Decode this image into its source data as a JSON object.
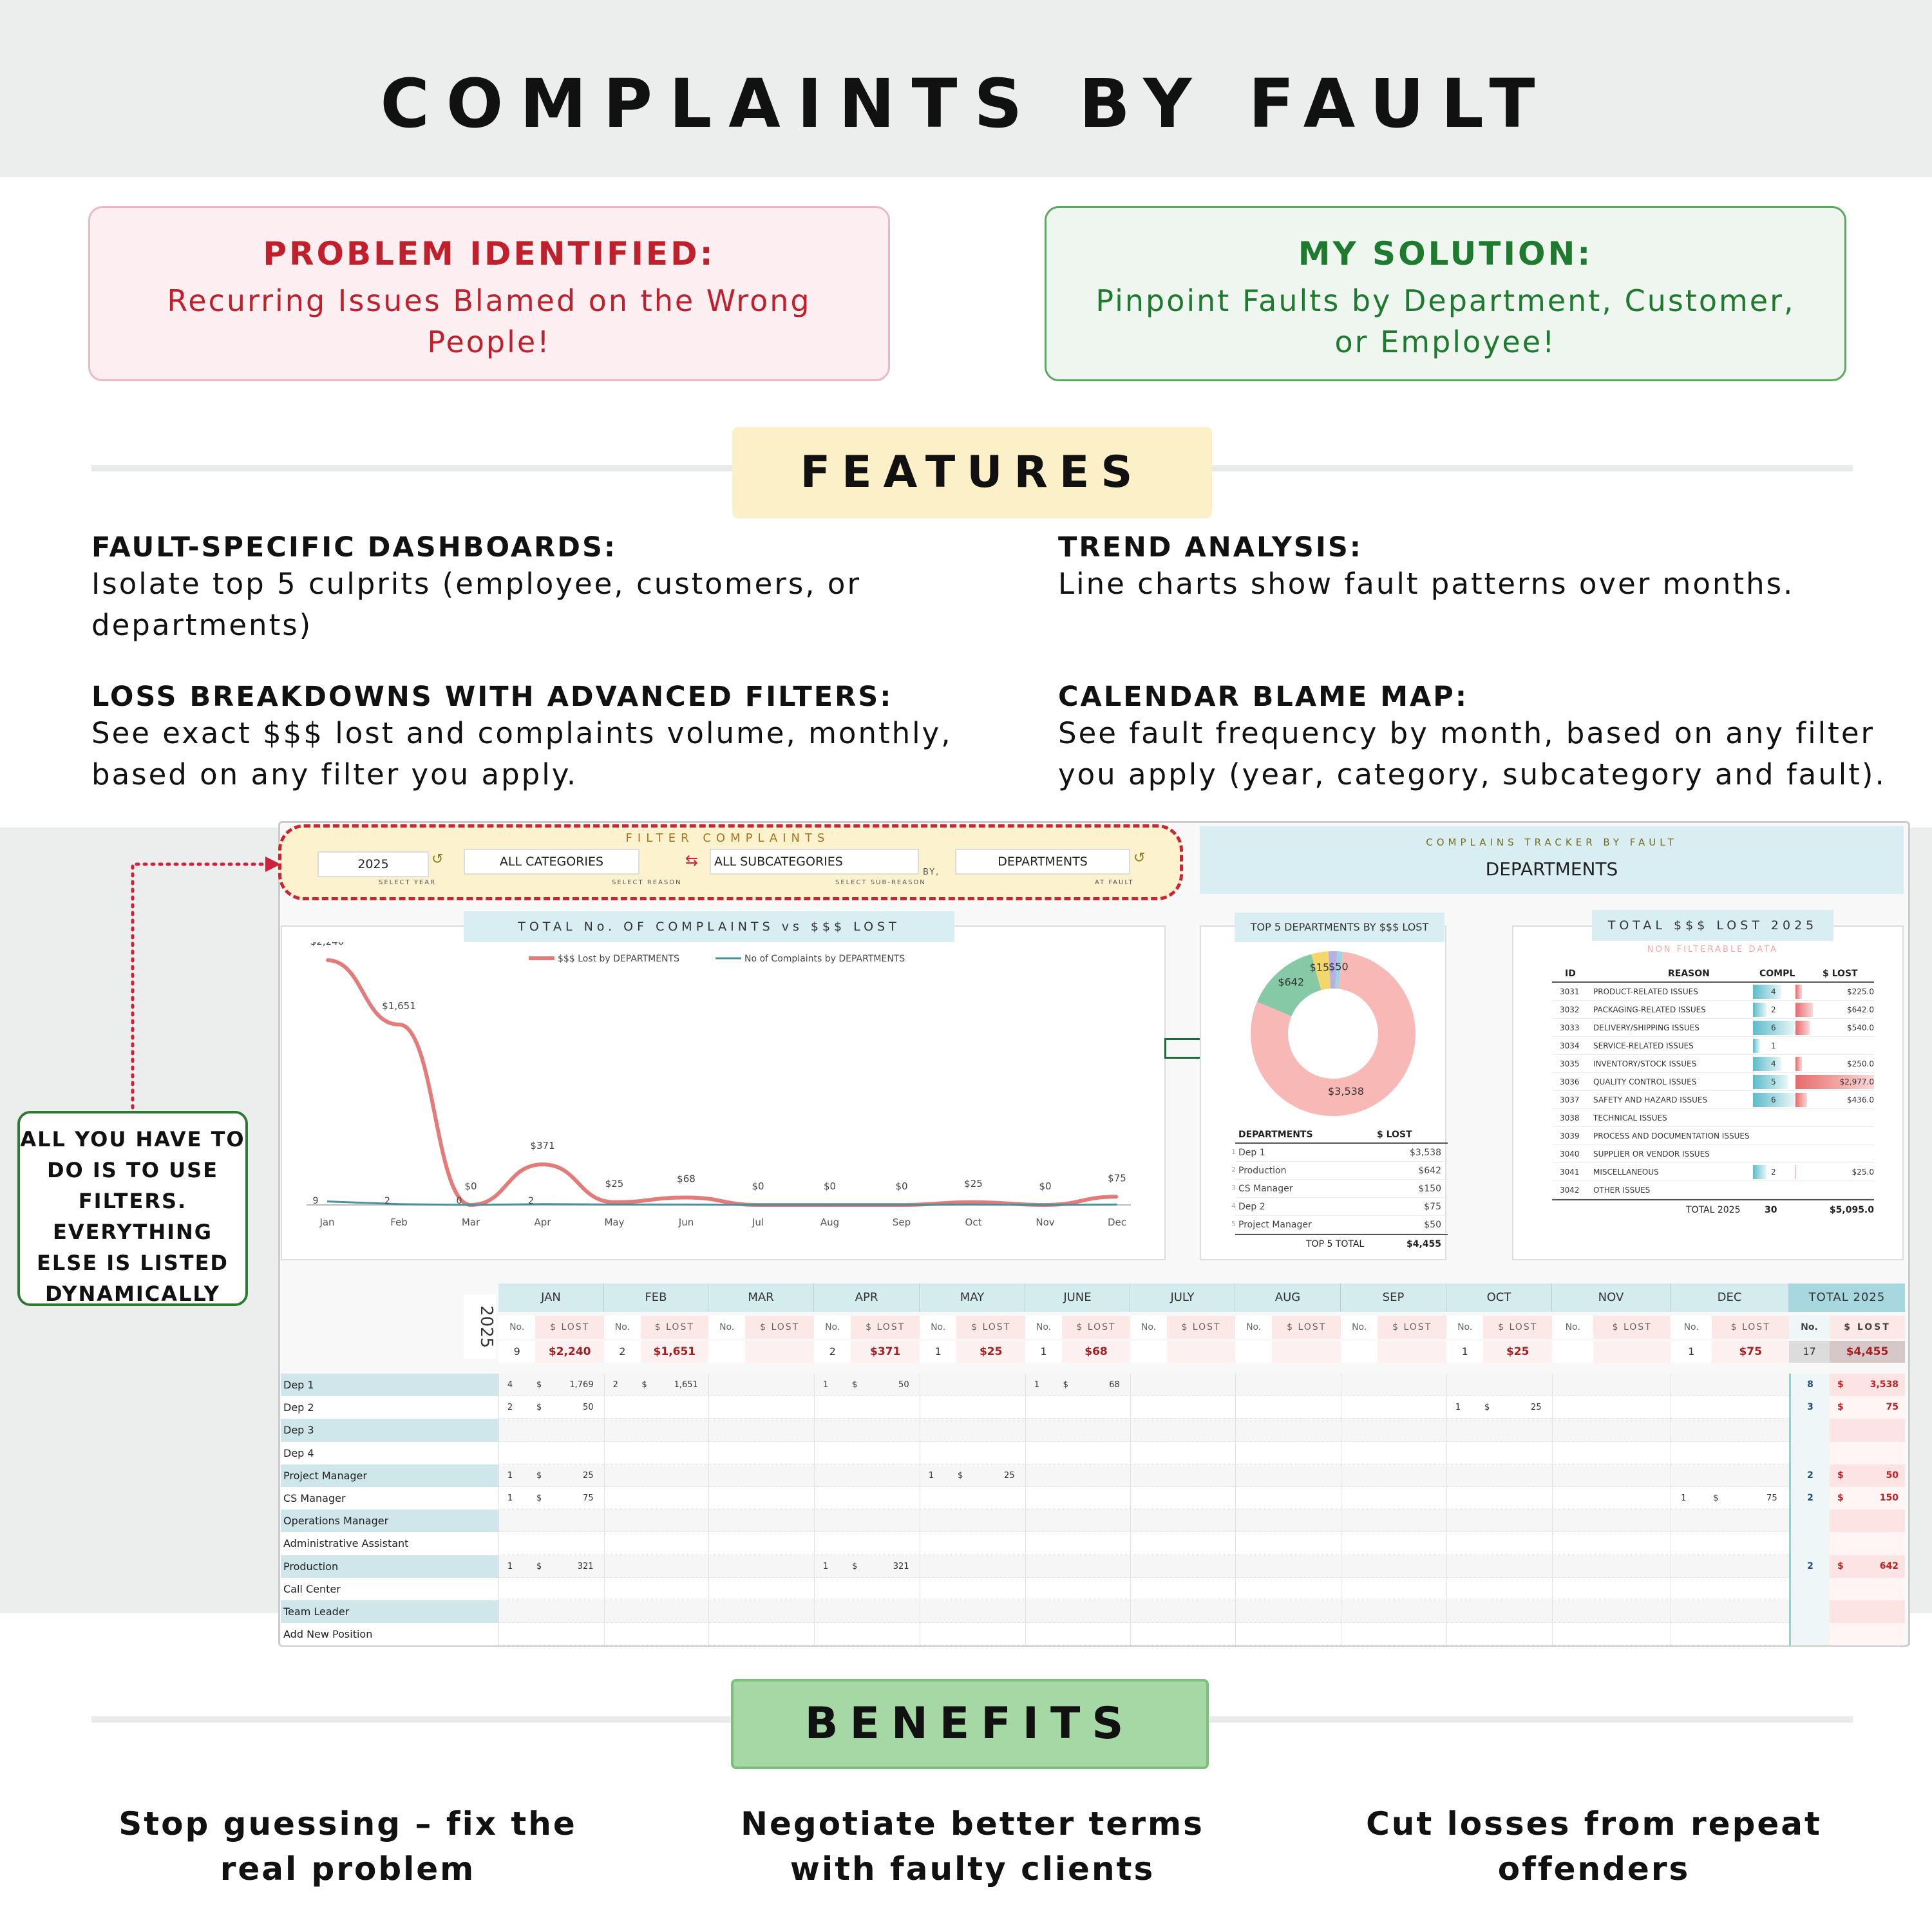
{
  "title": "COMPLAINTS BY FAULT",
  "problem": {
    "heading": "PROBLEM IDENTIFIED:",
    "text": "Recurring Issues Blamed on the Wrong People!",
    "bg": "#fdeef1",
    "border": "#e9b9c4",
    "color": "#c0202b"
  },
  "solution": {
    "heading": "MY SOLUTION:",
    "text": "Pinpoint Faults by Department, Customer, or Employee!",
    "bg": "#eef6ef",
    "border": "#5aa860",
    "color": "#1e7a2e"
  },
  "features": {
    "banner": "FEATURES",
    "items": [
      {
        "heading": "FAULT-SPECIFIC DASHBOARDS:",
        "text": "Isolate top 5 culprits (employee, customers, or departments)"
      },
      {
        "heading": "TREND ANALYSIS:",
        "text": "Line charts show fault patterns over months."
      },
      {
        "heading": "LOSS BREAKDOWNS WITH ADVANCED FILTERS:",
        "text": "See exact $$$ lost and complaints volume, monthly, based on any filter you apply."
      },
      {
        "heading": "CALENDAR BLAME MAP:",
        "text": "See fault frequency by month, based on any filter you apply (year, category, subcategory and fault)."
      }
    ]
  },
  "callout": "ALL YOU HAVE TO DO IS TO USE FILTERS. EVERYTHING ELSE IS LISTED DYNAMICALLY",
  "filters": {
    "title": "FILTER COMPLAINTS",
    "year": "2025",
    "year_sub": "SELECT YEAR",
    "category": "ALL CATEGORIES",
    "category_sub": "SELECT REASON",
    "subcategory": "ALL SUBCATEGORIES",
    "subcategory_sub": "SELECT SUB-REASON",
    "by": "BY,",
    "fault": "DEPARTMENTS",
    "fault_sub": "AT FAULT"
  },
  "tracker": {
    "title": "COMPLAINS TRACKER BY FAULT",
    "value": "DEPARTMENTS"
  },
  "line_title": "TOTAL No. OF COMPLAINTS vs $$$ LOST",
  "chart_data": [
    {
      "type": "line",
      "title": "TOTAL No. OF COMPLAINTS vs $$$ LOST",
      "categories": [
        "Jan",
        "Feb",
        "Mar",
        "Apr",
        "May",
        "Jun",
        "Jul",
        "Aug",
        "Sep",
        "Oct",
        "Nov",
        "Dec"
      ],
      "series": [
        {
          "name": "$$$ Lost by DEPARTMENTS",
          "values": [
            2240,
            1651,
            0,
            371,
            25,
            68,
            0,
            0,
            0,
            25,
            0,
            75
          ],
          "labels": [
            "$2,240",
            "$1,651",
            "$0",
            "$371",
            "$25",
            "$68",
            "$0",
            "$0",
            "$0",
            "$25",
            "$0",
            "$75"
          ],
          "color": "#e47b7b"
        },
        {
          "name": "No of Complaints by DEPARTMENTS",
          "values": [
            9,
            2,
            0,
            2,
            1,
            1,
            0,
            0,
            0,
            1,
            0,
            1
          ],
          "labels": [
            "9",
            "2",
            "0",
            "2",
            "",
            "",
            "",
            "",
            "",
            "",
            "",
            ""
          ],
          "color": "#4a8f9b"
        }
      ]
    },
    {
      "type": "pie",
      "title": "TOP 5 DEPARTMENTS BY $$$ LOST",
      "categories": [
        "Dep 1",
        "Production",
        "CS Manager",
        "Dep 2",
        "Project Manager"
      ],
      "values": [
        3538,
        642,
        150,
        75,
        50
      ],
      "labels": [
        "$3,538",
        "$642",
        "$150",
        "",
        "$50"
      ],
      "colors": [
        "#f8b8b6",
        "#86c9a6",
        "#f4d76a",
        "#b6b0e3",
        "#9fd4e0"
      ]
    }
  ],
  "top5": {
    "title": "TOP 5 DEPARTMENTS BY $$$ LOST",
    "col1": "DEPARTMENTS",
    "col2": "$ LOST",
    "rows": [
      {
        "idx": "1",
        "name": "Dep 1",
        "val": "$3,538"
      },
      {
        "idx": "2",
        "name": "Production",
        "val": "$642"
      },
      {
        "idx": "3",
        "name": "CS Manager",
        "val": "$150"
      },
      {
        "idx": "4",
        "name": "Dep 2",
        "val": "$75"
      },
      {
        "idx": "5",
        "name": "Project Manager",
        "val": "$50"
      }
    ],
    "total_label": "TOP 5 TOTAL",
    "total": "$4,455"
  },
  "lost_table": {
    "title": "TOTAL $$$ LOST 2025",
    "subtitle": "NON FILTERABLE DATA",
    "cols": [
      "ID",
      "REASON",
      "COMPL",
      "$ LOST"
    ],
    "rows": [
      {
        "id": "3031",
        "reason": "PRODUCT-RELATED ISSUES",
        "compl": "4",
        "lost": "$225.0",
        "cf": 0.67,
        "lf": 0.08
      },
      {
        "id": "3032",
        "reason": "PACKAGING-RELATED ISSUES",
        "compl": "2",
        "lost": "$642.0",
        "cf": 0.33,
        "lf": 0.22
      },
      {
        "id": "3033",
        "reason": "DELIVERY/SHIPPING ISSUES",
        "compl": "6",
        "lost": "$540.0",
        "cf": 1.0,
        "lf": 0.18
      },
      {
        "id": "3034",
        "reason": "SERVICE-RELATED ISSUES",
        "compl": "1",
        "lost": "",
        "cf": 0.17,
        "lf": 0
      },
      {
        "id": "3035",
        "reason": "INVENTORY/STOCK ISSUES",
        "compl": "4",
        "lost": "$250.0",
        "cf": 0.67,
        "lf": 0.08
      },
      {
        "id": "3036",
        "reason": "QUALITY CONTROL ISSUES",
        "compl": "5",
        "lost": "$2,977.0",
        "cf": 0.83,
        "lf": 1.0
      },
      {
        "id": "3037",
        "reason": "SAFETY AND HAZARD ISSUES",
        "compl": "6",
        "lost": "$436.0",
        "cf": 1.0,
        "lf": 0.15
      },
      {
        "id": "3038",
        "reason": "TECHNICAL ISSUES",
        "compl": "",
        "lost": "",
        "cf": 0,
        "lf": 0
      },
      {
        "id": "3039",
        "reason": "PROCESS AND DOCUMENTATION ISSUES",
        "compl": "",
        "lost": "",
        "cf": 0,
        "lf": 0
      },
      {
        "id": "3040",
        "reason": "SUPPLIER OR VENDOR ISSUES",
        "compl": "",
        "lost": "",
        "cf": 0,
        "lf": 0
      },
      {
        "id": "3041",
        "reason": "MISCELLANEOUS",
        "compl": "2",
        "lost": "$25.0",
        "cf": 0.33,
        "lf": 0.01
      },
      {
        "id": "3042",
        "reason": "OTHER ISSUES",
        "compl": "",
        "lost": "",
        "cf": 0,
        "lf": 0
      }
    ],
    "total_label": "TOTAL 2025",
    "total_compl": "30",
    "total_lost": "$5,095.0"
  },
  "calendar": {
    "year": "2025",
    "months": [
      "JAN",
      "FEB",
      "MAR",
      "APR",
      "MAY",
      "JUNE",
      "JULY",
      "AUG",
      "SEP",
      "OCT",
      "NOV",
      "DEC"
    ],
    "total_label": "TOTAL 2025",
    "no_label": "No.",
    "lost_label": "$ LOST",
    "month_totals": [
      [
        "9",
        "$2,240"
      ],
      [
        "2",
        "$1,651"
      ],
      [
        "",
        ""
      ],
      [
        "2",
        "$371"
      ],
      [
        "1",
        "$25"
      ],
      [
        "1",
        "$68"
      ],
      [
        "",
        ""
      ],
      [
        "",
        ""
      ],
      [
        "",
        ""
      ],
      [
        "1",
        "$25"
      ],
      [
        "",
        ""
      ],
      [
        "1",
        "$75"
      ]
    ],
    "grand": [
      "17",
      "$4,455"
    ],
    "rows": [
      {
        "name": "Dep 1",
        "cells": {
          "0": [
            "4",
            "1,769"
          ],
          "1": [
            "2",
            "1,651"
          ],
          "3": [
            "1",
            "50"
          ],
          "5": [
            "1",
            "68"
          ]
        },
        "total": [
          "8",
          "3,538"
        ]
      },
      {
        "name": "Dep 2",
        "cells": {
          "0": [
            "2",
            "50"
          ],
          "9": [
            "1",
            "25"
          ]
        },
        "total": [
          "3",
          "75"
        ]
      },
      {
        "name": "Dep 3",
        "cells": {},
        "total": [
          "",
          ""
        ]
      },
      {
        "name": "Dep 4",
        "cells": {},
        "total": [
          "",
          ""
        ]
      },
      {
        "name": "Project Manager",
        "cells": {
          "0": [
            "1",
            "25"
          ],
          "4": [
            "1",
            "25"
          ]
        },
        "total": [
          "2",
          "50"
        ]
      },
      {
        "name": "CS Manager",
        "cells": {
          "0": [
            "1",
            "75"
          ],
          "11": [
            "1",
            "75"
          ]
        },
        "total": [
          "2",
          "150"
        ]
      },
      {
        "name": "Operations Manager",
        "cells": {},
        "total": [
          "",
          ""
        ]
      },
      {
        "name": "Administrative Assistant",
        "cells": {},
        "total": [
          "",
          ""
        ]
      },
      {
        "name": "Production",
        "cells": {
          "0": [
            "1",
            "321"
          ],
          "3": [
            "1",
            "321"
          ]
        },
        "total": [
          "2",
          "642"
        ]
      },
      {
        "name": "Call Center",
        "cells": {},
        "total": [
          "",
          ""
        ]
      },
      {
        "name": "Team Leader",
        "cells": {},
        "total": [
          "",
          ""
        ]
      },
      {
        "name": "Add New Position",
        "cells": {},
        "total": [
          "",
          ""
        ]
      }
    ]
  },
  "benefits": {
    "banner": "BENEFITS",
    "items": [
      "Stop guessing – fix the real problem",
      "Negotiate better terms with faulty clients",
      "Cut losses from repeat offenders"
    ]
  }
}
